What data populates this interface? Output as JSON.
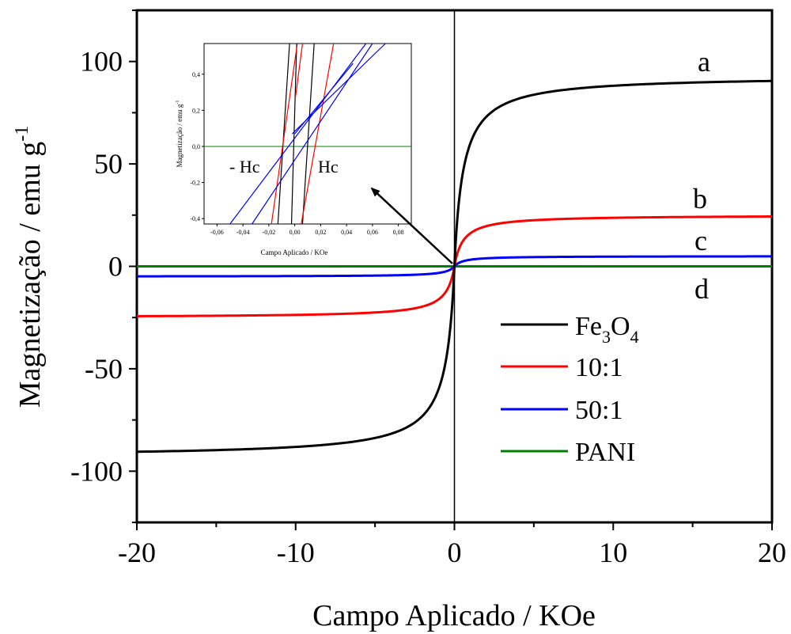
{
  "chart_data": {
    "type": "line",
    "xlabel": "Campo Aplicado / KOe",
    "ylabel": "Magnetização / emu g",
    "ylabel_sup": "-1",
    "xlim": [
      -20,
      20
    ],
    "ylim": [
      -125,
      125
    ],
    "x_ticks": [
      -20,
      -10,
      0,
      10,
      20
    ],
    "x_tick_labels": [
      "-20",
      "-10",
      "0",
      "10",
      "20"
    ],
    "y_ticks": [
      -100,
      -50,
      0,
      50,
      100
    ],
    "y_tick_labels": [
      "-100",
      "-50",
      "0",
      "50",
      "100"
    ],
    "legend_position": "lower-right",
    "series": [
      {
        "name": "Fe3O4",
        "legend_label": {
          "base": "Fe",
          "sub1": "3",
          "mid": "O",
          "sub2": "4"
        },
        "letter": "a",
        "color": "#000000",
        "ms": 93,
        "h0": 0.55,
        "hc": 0.011
      },
      {
        "name": "10:1",
        "legend_label": {
          "text": "10:1"
        },
        "letter": "b",
        "color": "#ff0000",
        "ms": 25,
        "h0": 0.55,
        "hc": 0.011
      },
      {
        "name": "50:1",
        "legend_label": {
          "text": "50:1"
        },
        "letter": "c",
        "color": "#0000ff",
        "ms": 5,
        "h0": 0.55,
        "hc": 0.02
      },
      {
        "name": "PANI",
        "legend_label": {
          "text": "PANI"
        },
        "letter": "d",
        "color": "#008000",
        "ms": 0,
        "h0": 0.55,
        "hc": 0
      }
    ],
    "inset": {
      "xlabel": "Campo Aplicado / KOe",
      "ylabel": "Magnetização / emu g",
      "ylabel_sup": "-1",
      "xlim": [
        -0.07,
        0.09
      ],
      "ylim": [
        -0.43,
        0.57
      ],
      "x_ticks": [
        -0.06,
        -0.04,
        -0.02,
        0.0,
        0.02,
        0.04,
        0.06,
        0.08
      ],
      "x_tick_labels": [
        "-0,06",
        "-0,04",
        "-0,02",
        "0,00",
        "0,02",
        "0,04",
        "0,06",
        "0,08"
      ],
      "y_ticks": [
        -0.4,
        -0.2,
        0.0,
        0.2,
        0.4
      ],
      "y_tick_labels": [
        "-0,4",
        "-0,2",
        "0,0",
        "0,2",
        "0,4"
      ],
      "annotations": [
        "- Hc",
        "Hc"
      ],
      "branch_lines": [
        {
          "color": "#000000",
          "x": [
            [
              -0.013,
              -0.004
            ],
            [
              0.006,
              0.015
            ],
            [
              -0.0025,
              0.0015
            ]
          ],
          "y": [
            [
              -0.43,
              0.57
            ],
            [
              -0.43,
              0.57
            ],
            [
              -0.43,
              0.57
            ]
          ]
        },
        {
          "color": "#ff0000",
          "x": [
            [
              -0.018,
              0.002
            ],
            [
              0.005,
              0.03
            ],
            [
              0.0005,
              0.006
            ]
          ],
          "y": [
            [
              -0.43,
              0.57
            ],
            [
              -0.43,
              0.57
            ],
            [
              0.27,
              0.57
            ]
          ]
        },
        {
          "color": "#0000ff",
          "x": [
            [
              -0.05,
              0.055
            ],
            [
              -0.033,
              0.06
            ],
            [
              -0.002,
              0.07
            ],
            [
              0.0,
              0.045
            ]
          ],
          "y": [
            [
              -0.43,
              0.57
            ],
            [
              -0.43,
              0.57
            ],
            [
              0.07,
              0.57
            ],
            [
              0.07,
              0.46
            ]
          ]
        }
      ],
      "zero_line_color": "#008000"
    }
  }
}
